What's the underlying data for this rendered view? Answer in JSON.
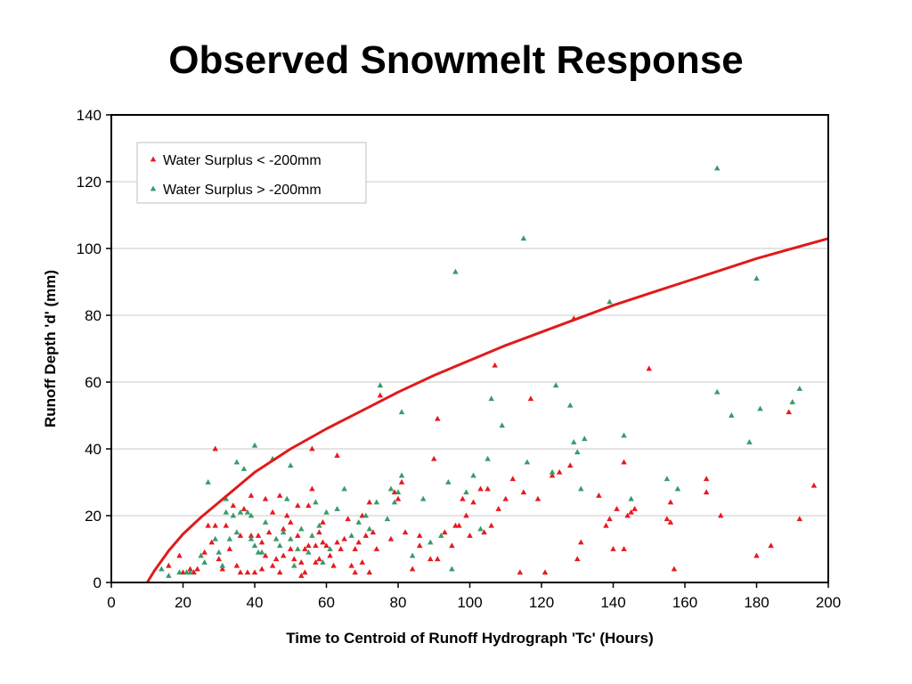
{
  "page": {
    "title": "Observed Snowmelt Response"
  },
  "colors": {
    "red_series": "#e8191e",
    "green_series": "#3a9a6a",
    "curve": "#e01b1b",
    "gridline": "#c8c8c8",
    "axis": "#000000"
  },
  "chart_data": {
    "type": "scatter",
    "title": "Observed Snowmelt Response",
    "xlabel": "Time to Centroid of Runoff Hydrograph 'Tc' (Hours)",
    "ylabel": "Runoff Depth 'd' (mm)",
    "xlim": [
      0,
      200
    ],
    "ylim": [
      0,
      140
    ],
    "xticks": [
      0,
      20,
      40,
      60,
      80,
      100,
      120,
      140,
      160,
      180,
      200
    ],
    "yticks": [
      0,
      20,
      40,
      60,
      80,
      100,
      120,
      140
    ],
    "grid": "horizontal",
    "legend_position": "top-left",
    "series": [
      {
        "name": "Water Surplus < -200mm",
        "marker": "triangle",
        "color": "#e8191e",
        "points": [
          [
            16,
            5
          ],
          [
            19,
            8
          ],
          [
            20,
            3
          ],
          [
            22,
            4
          ],
          [
            23,
            3
          ],
          [
            24,
            4
          ],
          [
            26,
            9
          ],
          [
            27,
            17
          ],
          [
            28,
            12
          ],
          [
            29,
            17
          ],
          [
            29,
            40
          ],
          [
            30,
            7
          ],
          [
            31,
            4
          ],
          [
            32,
            17
          ],
          [
            33,
            10
          ],
          [
            34,
            23
          ],
          [
            35,
            5
          ],
          [
            36,
            3
          ],
          [
            36,
            14
          ],
          [
            37,
            22
          ],
          [
            38,
            3
          ],
          [
            39,
            14
          ],
          [
            39,
            26
          ],
          [
            40,
            3
          ],
          [
            41,
            14
          ],
          [
            42,
            12
          ],
          [
            42,
            4
          ],
          [
            43,
            25
          ],
          [
            43,
            8
          ],
          [
            44,
            15
          ],
          [
            45,
            21
          ],
          [
            45,
            5
          ],
          [
            46,
            7
          ],
          [
            47,
            26
          ],
          [
            47,
            3
          ],
          [
            48,
            8
          ],
          [
            48,
            16
          ],
          [
            49,
            20
          ],
          [
            50,
            10
          ],
          [
            50,
            18
          ],
          [
            51,
            7
          ],
          [
            52,
            14
          ],
          [
            52,
            23
          ],
          [
            53,
            6
          ],
          [
            53,
            2
          ],
          [
            54,
            10
          ],
          [
            54,
            3
          ],
          [
            55,
            11
          ],
          [
            55,
            23
          ],
          [
            56,
            28
          ],
          [
            56,
            40
          ],
          [
            57,
            11
          ],
          [
            57,
            6
          ],
          [
            58,
            7
          ],
          [
            58,
            15
          ],
          [
            59,
            12
          ],
          [
            59,
            18
          ],
          [
            60,
            11
          ],
          [
            61,
            8
          ],
          [
            62,
            5
          ],
          [
            63,
            12
          ],
          [
            63,
            38
          ],
          [
            64,
            10
          ],
          [
            65,
            13
          ],
          [
            66,
            19
          ],
          [
            67,
            5
          ],
          [
            68,
            10
          ],
          [
            68,
            3
          ],
          [
            69,
            12
          ],
          [
            70,
            6
          ],
          [
            70,
            20
          ],
          [
            71,
            14
          ],
          [
            72,
            3
          ],
          [
            72,
            24
          ],
          [
            73,
            15
          ],
          [
            74,
            10
          ],
          [
            75,
            56
          ],
          [
            78,
            13
          ],
          [
            79,
            27
          ],
          [
            80,
            25
          ],
          [
            81,
            30
          ],
          [
            82,
            15
          ],
          [
            84,
            4
          ],
          [
            86,
            11
          ],
          [
            86,
            14
          ],
          [
            89,
            7
          ],
          [
            90,
            37
          ],
          [
            91,
            49
          ],
          [
            91,
            7
          ],
          [
            93,
            15
          ],
          [
            95,
            11
          ],
          [
            96,
            17
          ],
          [
            97,
            17
          ],
          [
            98,
            25
          ],
          [
            99,
            20
          ],
          [
            100,
            14
          ],
          [
            101,
            24
          ],
          [
            103,
            28
          ],
          [
            104,
            15
          ],
          [
            105,
            28
          ],
          [
            106,
            17
          ],
          [
            107,
            65
          ],
          [
            108,
            22
          ],
          [
            110,
            25
          ],
          [
            112,
            31
          ],
          [
            114,
            3
          ],
          [
            115,
            27
          ],
          [
            117,
            55
          ],
          [
            119,
            25
          ],
          [
            121,
            3
          ],
          [
            123,
            32
          ],
          [
            125,
            33
          ],
          [
            128,
            35
          ],
          [
            129,
            79
          ],
          [
            130,
            7
          ],
          [
            131,
            12
          ],
          [
            136,
            26
          ],
          [
            138,
            17
          ],
          [
            139,
            19
          ],
          [
            140,
            10
          ],
          [
            141,
            22
          ],
          [
            143,
            36
          ],
          [
            143,
            10
          ],
          [
            144,
            20
          ],
          [
            145,
            21
          ],
          [
            146,
            22
          ],
          [
            150,
            64
          ],
          [
            155,
            19
          ],
          [
            156,
            18
          ],
          [
            156,
            24
          ],
          [
            157,
            4
          ],
          [
            166,
            27
          ],
          [
            166,
            31
          ],
          [
            170,
            20
          ],
          [
            180,
            8
          ],
          [
            184,
            11
          ],
          [
            189,
            51
          ],
          [
            192,
            19
          ],
          [
            196,
            29
          ]
        ]
      },
      {
        "name": "Water Surplus > -200mm",
        "marker": "triangle",
        "color": "#3a9a6a",
        "points": [
          [
            14,
            4
          ],
          [
            16,
            2
          ],
          [
            19,
            3
          ],
          [
            21,
            3
          ],
          [
            22,
            3
          ],
          [
            25,
            8
          ],
          [
            26,
            6
          ],
          [
            27,
            30
          ],
          [
            29,
            13
          ],
          [
            30,
            9
          ],
          [
            31,
            5
          ],
          [
            32,
            21
          ],
          [
            32,
            25
          ],
          [
            33,
            13
          ],
          [
            34,
            20
          ],
          [
            35,
            36
          ],
          [
            35,
            15
          ],
          [
            36,
            21
          ],
          [
            37,
            34
          ],
          [
            38,
            21
          ],
          [
            39,
            20
          ],
          [
            39,
            13
          ],
          [
            40,
            11
          ],
          [
            40,
            41
          ],
          [
            41,
            9
          ],
          [
            42,
            9
          ],
          [
            43,
            18
          ],
          [
            45,
            37
          ],
          [
            46,
            13
          ],
          [
            47,
            11
          ],
          [
            48,
            15
          ],
          [
            49,
            25
          ],
          [
            50,
            35
          ],
          [
            50,
            13
          ],
          [
            51,
            5
          ],
          [
            52,
            10
          ],
          [
            53,
            16
          ],
          [
            55,
            9
          ],
          [
            56,
            14
          ],
          [
            57,
            24
          ],
          [
            58,
            17
          ],
          [
            59,
            6
          ],
          [
            60,
            21
          ],
          [
            61,
            10
          ],
          [
            63,
            22
          ],
          [
            65,
            28
          ],
          [
            67,
            14
          ],
          [
            69,
            18
          ],
          [
            71,
            20
          ],
          [
            72,
            16
          ],
          [
            74,
            24
          ],
          [
            75,
            59
          ],
          [
            77,
            19
          ],
          [
            78,
            28
          ],
          [
            79,
            24
          ],
          [
            80,
            27
          ],
          [
            81,
            51
          ],
          [
            81,
            32
          ],
          [
            84,
            8
          ],
          [
            87,
            25
          ],
          [
            89,
            12
          ],
          [
            92,
            14
          ],
          [
            94,
            30
          ],
          [
            95,
            4
          ],
          [
            96,
            93
          ],
          [
            99,
            27
          ],
          [
            101,
            32
          ],
          [
            103,
            16
          ],
          [
            105,
            37
          ],
          [
            106,
            55
          ],
          [
            109,
            47
          ],
          [
            115,
            103
          ],
          [
            116,
            36
          ],
          [
            123,
            33
          ],
          [
            124,
            59
          ],
          [
            128,
            53
          ],
          [
            129,
            42
          ],
          [
            130,
            39
          ],
          [
            131,
            28
          ],
          [
            132,
            43
          ],
          [
            139,
            84
          ],
          [
            143,
            44
          ],
          [
            145,
            25
          ],
          [
            155,
            31
          ],
          [
            158,
            28
          ],
          [
            169,
            124
          ],
          [
            169,
            57
          ],
          [
            173,
            50
          ],
          [
            178,
            42
          ],
          [
            180,
            91
          ],
          [
            181,
            52
          ],
          [
            190,
            54
          ],
          [
            192,
            58
          ]
        ]
      }
    ],
    "curve": {
      "type": "fit",
      "color": "#e01b1b",
      "points": [
        [
          10,
          0
        ],
        [
          12,
          3.5
        ],
        [
          14,
          6.5
        ],
        [
          16,
          9.5
        ],
        [
          20,
          14.5
        ],
        [
          25,
          19.5
        ],
        [
          30,
          24
        ],
        [
          35,
          28.5
        ],
        [
          40,
          33
        ],
        [
          50,
          40
        ],
        [
          60,
          46
        ],
        [
          70,
          51.5
        ],
        [
          80,
          57
        ],
        [
          90,
          62
        ],
        [
          100,
          66.5
        ],
        [
          110,
          71
        ],
        [
          120,
          75
        ],
        [
          130,
          79
        ],
        [
          140,
          83
        ],
        [
          150,
          86.5
        ],
        [
          160,
          90
        ],
        [
          170,
          93.5
        ],
        [
          180,
          97
        ],
        [
          190,
          100
        ],
        [
          200,
          103
        ]
      ]
    }
  }
}
